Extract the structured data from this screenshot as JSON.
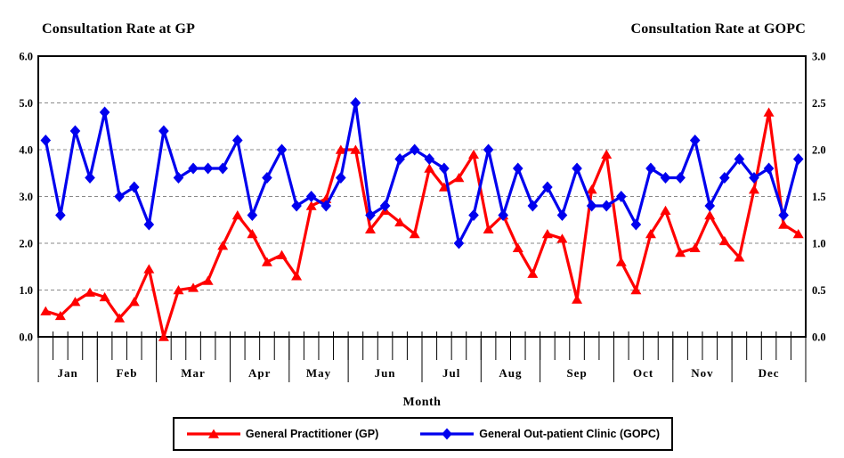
{
  "chart_data": {
    "type": "line",
    "title_left": "Consultation Rate at GP",
    "title_right": "Consultation Rate at GOPC",
    "xlabel": "Month",
    "months": [
      "Jan",
      "Feb",
      "Mar",
      "Apr",
      "May",
      "Jun",
      "Jul",
      "Aug",
      "Sep",
      "Oct",
      "Nov",
      "Dec"
    ],
    "weeks_per_month": [
      4,
      4,
      5,
      4,
      4,
      5,
      4,
      4,
      5,
      4,
      4,
      5
    ],
    "left_axis": {
      "min": 0,
      "max": 6,
      "step": 1,
      "tick_labels": [
        "0.0",
        "1.0",
        "2.0",
        "3.0",
        "4.0",
        "5.0",
        "6.0"
      ]
    },
    "right_axis": {
      "min": 0,
      "max": 3,
      "step": 0.5,
      "tick_labels": [
        "0.0",
        "0.5",
        "1.0",
        "1.5",
        "2.0",
        "2.5",
        "3.0"
      ]
    },
    "grid": "horizontal-dashed-gray",
    "legend_position": "bottom",
    "colors": {
      "gp": "#FF0000",
      "gopc": "#0000EE",
      "gridline": "#8a8a8a",
      "axis": "#000000"
    },
    "series": [
      {
        "name": "General Practitioner (GP)",
        "axis": "left",
        "color": "#FF0000",
        "marker": "triangle",
        "values": [
          0.55,
          0.45,
          0.75,
          0.95,
          0.85,
          0.4,
          0.75,
          1.45,
          0.0,
          1.0,
          1.05,
          1.2,
          1.95,
          2.6,
          2.2,
          1.6,
          1.75,
          1.3,
          2.8,
          2.95,
          4.0,
          4.0,
          2.3,
          2.7,
          2.45,
          2.2,
          3.6,
          3.2,
          3.4,
          3.9,
          2.3,
          2.6,
          1.9,
          1.35,
          2.2,
          2.1,
          0.8,
          3.15,
          3.9,
          1.6,
          1.0,
          2.2,
          2.7,
          1.8,
          1.9,
          2.6,
          2.05,
          1.7,
          3.15,
          4.8,
          2.4,
          2.2
        ]
      },
      {
        "name": "General Out-patient Clinic (GOPC)",
        "axis": "right",
        "color": "#0000EE",
        "marker": "diamond",
        "values": [
          2.1,
          1.3,
          2.2,
          1.7,
          2.4,
          1.5,
          1.6,
          1.2,
          2.2,
          1.7,
          1.8,
          1.8,
          1.8,
          2.1,
          1.3,
          1.7,
          2.0,
          1.4,
          1.5,
          1.4,
          1.7,
          2.5,
          1.3,
          1.4,
          1.9,
          2.0,
          1.9,
          1.8,
          1.0,
          1.3,
          2.0,
          1.3,
          1.8,
          1.4,
          1.6,
          1.3,
          1.8,
          1.4,
          1.4,
          1.5,
          1.2,
          1.8,
          1.7,
          1.7,
          2.1,
          1.4,
          1.7,
          1.9,
          1.7,
          1.8,
          1.3,
          1.9
        ]
      }
    ]
  }
}
